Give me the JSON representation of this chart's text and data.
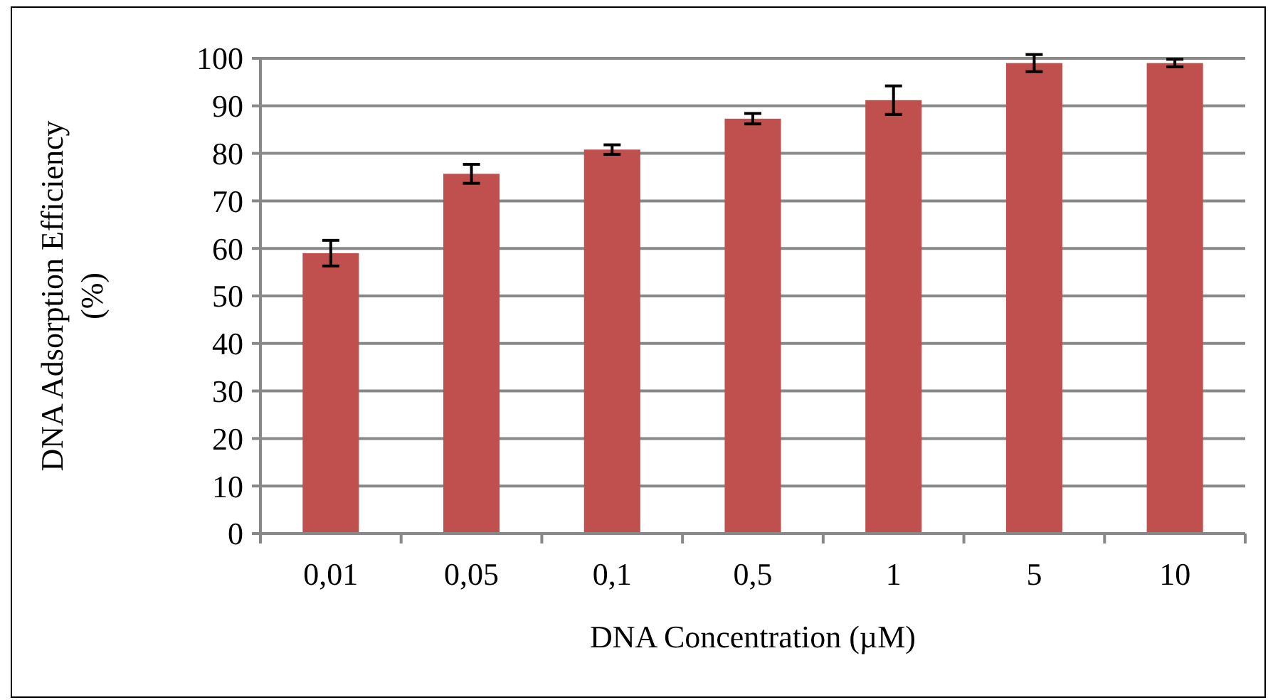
{
  "chart_data": {
    "type": "bar",
    "xlabel": "DNA Concentration (µM)",
    "ylabel": "DNA Adsorption Efficiency (%)",
    "categories": [
      "0,01",
      "0,05",
      "0,1",
      "0,5",
      "1",
      "5",
      "10"
    ],
    "values": [
      59,
      75.7,
      80.8,
      87.3,
      91.2,
      99,
      99
    ],
    "errors": [
      2.7,
      2,
      1,
      1.1,
      3,
      1.8,
      0.8
    ],
    "color": "#c0504d",
    "ylim": [
      0,
      100
    ],
    "yticks": [
      0,
      10,
      20,
      30,
      40,
      50,
      60,
      70,
      80,
      90,
      100
    ],
    "grid": "y"
  }
}
